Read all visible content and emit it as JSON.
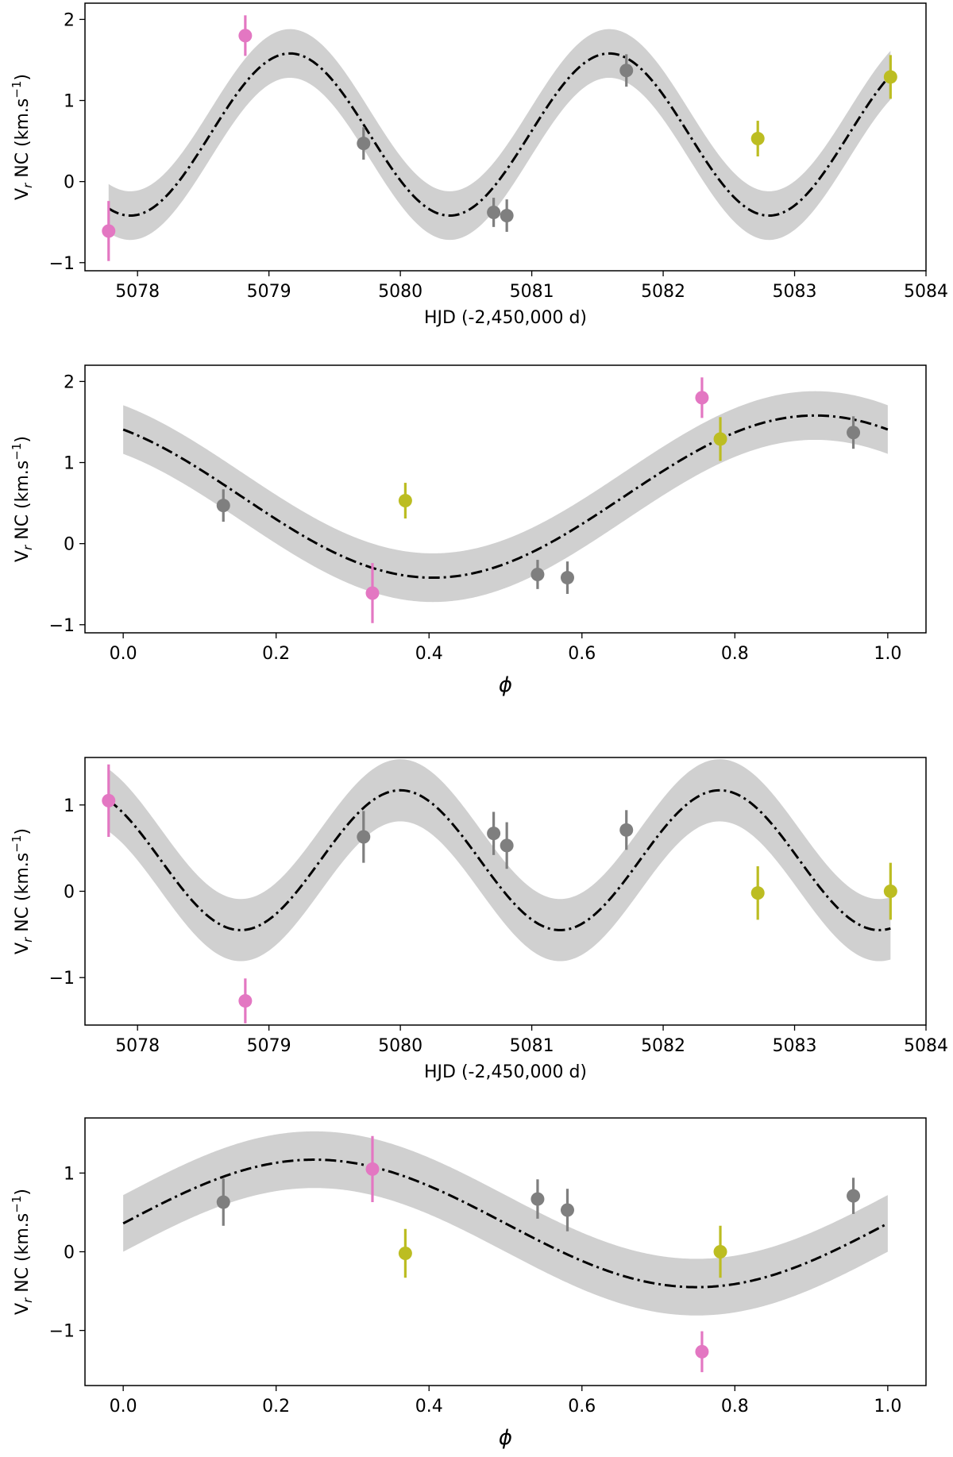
{
  "figure": {
    "colors": {
      "pink": "#e377c2",
      "gray": "#7f7f7f",
      "olive": "#bcbd22",
      "band": "#d0d0d0",
      "model": "#000000"
    }
  },
  "chart_data": [
    {
      "type": "scatter",
      "panel": "top",
      "xlabel": "HJD (-2,450,000 d)",
      "ylabel": "V_r NC (km.s^-1)",
      "ylabel_parts": {
        "main": "V",
        "sub": "r",
        "mid": " NC (km.s",
        "sup": "−1",
        "end": ")"
      },
      "xlim": [
        5077.6,
        5084.0
      ],
      "ylim": [
        -1.1,
        2.2
      ],
      "xticks": [
        5078,
        5079,
        5080,
        5081,
        5082,
        5083,
        5084
      ],
      "xtick_labels": [
        "5078",
        "5079",
        "5080",
        "5081",
        "5082",
        "5083",
        "5084"
      ],
      "yticks": [
        -1,
        0,
        1,
        2
      ],
      "ytick_labels": [
        "−1",
        "0",
        "1",
        "2"
      ],
      "model": {
        "style": "dash-dot",
        "x_range": [
          5077.78,
          5083.73
        ],
        "mean": 0.58,
        "amplitude": 1.0,
        "period": 2.43,
        "t_peak": 5079.16,
        "band_halfwidth": 0.3
      },
      "series": [
        {
          "name": "pink",
          "color": "#e377c2",
          "points": [
            {
              "x": 5077.78,
              "y": -0.61,
              "err": 0.37
            },
            {
              "x": 5078.82,
              "y": 1.8,
              "err": 0.25
            }
          ]
        },
        {
          "name": "gray",
          "color": "#7f7f7f",
          "points": [
            {
              "x": 5079.72,
              "y": 0.47,
              "err": 0.2
            },
            {
              "x": 5080.71,
              "y": -0.38,
              "err": 0.18
            },
            {
              "x": 5080.81,
              "y": -0.42,
              "err": 0.2
            },
            {
              "x": 5081.72,
              "y": 1.37,
              "err": 0.2
            }
          ]
        },
        {
          "name": "olive",
          "color": "#bcbd22",
          "points": [
            {
              "x": 5082.72,
              "y": 0.53,
              "err": 0.22
            },
            {
              "x": 5083.73,
              "y": 1.29,
              "err": 0.27
            }
          ]
        }
      ]
    },
    {
      "type": "scatter",
      "panel": "second",
      "xlabel": "ϕ",
      "ylabel": "V_r NC (km.s^-1)",
      "ylabel_parts": {
        "main": "V",
        "sub": "r",
        "mid": " NC (km.s",
        "sup": "−1",
        "end": ")"
      },
      "xlim": [
        -0.05,
        1.05
      ],
      "ylim": [
        -1.1,
        2.2
      ],
      "xticks": [
        0.0,
        0.2,
        0.4,
        0.6,
        0.8,
        1.0
      ],
      "xtick_labels": [
        "0.0",
        "0.2",
        "0.4",
        "0.6",
        "0.8",
        "1.0"
      ],
      "yticks": [
        -1,
        0,
        1,
        2
      ],
      "ytick_labels": [
        "−1",
        "0",
        "1",
        "2"
      ],
      "model": {
        "style": "dash-dot",
        "x_range": [
          0.0,
          1.0
        ],
        "mean": 0.58,
        "amplitude": 1.0,
        "period": 1.0,
        "t_peak": 0.905,
        "band_halfwidth": 0.3
      },
      "series": [
        {
          "name": "pink",
          "color": "#e377c2",
          "points": [
            {
              "x": 0.326,
              "y": -0.61,
              "err": 0.37
            },
            {
              "x": 0.757,
              "y": 1.8,
              "err": 0.25
            }
          ]
        },
        {
          "name": "gray",
          "color": "#7f7f7f",
          "points": [
            {
              "x": 0.131,
              "y": 0.47,
              "err": 0.2
            },
            {
              "x": 0.542,
              "y": -0.38,
              "err": 0.18
            },
            {
              "x": 0.581,
              "y": -0.42,
              "err": 0.2
            },
            {
              "x": 0.955,
              "y": 1.37,
              "err": 0.2
            }
          ]
        },
        {
          "name": "olive",
          "color": "#bcbd22",
          "points": [
            {
              "x": 0.369,
              "y": 0.53,
              "err": 0.22
            },
            {
              "x": 0.781,
              "y": 1.29,
              "err": 0.27
            }
          ]
        }
      ]
    },
    {
      "type": "scatter",
      "panel": "third",
      "xlabel": "HJD (-2,450,000 d)",
      "ylabel": "V_r NC (km.s^-1)",
      "ylabel_parts": {
        "main": "V",
        "sub": "r",
        "mid": " NC (km.s",
        "sup": "−1",
        "end": ")"
      },
      "xlim": [
        5077.6,
        5084.0
      ],
      "ylim": [
        -1.55,
        1.55
      ],
      "xticks": [
        5078,
        5079,
        5080,
        5081,
        5082,
        5083,
        5084
      ],
      "xtick_labels": [
        "5078",
        "5079",
        "5080",
        "5081",
        "5082",
        "5083",
        "5084"
      ],
      "yticks": [
        -1,
        0,
        1
      ],
      "ytick_labels": [
        "−1",
        "0",
        "1"
      ],
      "model": {
        "style": "dash-dot",
        "x_range": [
          5077.78,
          5083.73
        ],
        "mean": 0.36,
        "amplitude": 0.81,
        "period": 2.43,
        "t_peak": 5080.0,
        "band_halfwidth": 0.36
      },
      "series": [
        {
          "name": "pink",
          "color": "#e377c2",
          "points": [
            {
              "x": 5077.78,
              "y": 1.05,
              "err": 0.42
            },
            {
              "x": 5078.82,
              "y": -1.27,
              "err": 0.26
            }
          ]
        },
        {
          "name": "gray",
          "color": "#7f7f7f",
          "points": [
            {
              "x": 5079.72,
              "y": 0.63,
              "err": 0.3
            },
            {
              "x": 5080.71,
              "y": 0.67,
              "err": 0.25
            },
            {
              "x": 5080.81,
              "y": 0.53,
              "err": 0.27
            },
            {
              "x": 5081.72,
              "y": 0.71,
              "err": 0.23
            }
          ]
        },
        {
          "name": "olive",
          "color": "#bcbd22",
          "points": [
            {
              "x": 5082.72,
              "y": -0.02,
              "err": 0.31
            },
            {
              "x": 5083.73,
              "y": 0.0,
              "err": 0.33
            }
          ]
        }
      ]
    },
    {
      "type": "scatter",
      "panel": "bottom",
      "xlabel": "ϕ",
      "ylabel": "V_r NC (km.s^-1)",
      "ylabel_parts": {
        "main": "V",
        "sub": "r",
        "mid": " NC (km.s",
        "sup": "−1",
        "end": ")"
      },
      "xlim": [
        -0.05,
        1.05
      ],
      "ylim": [
        -1.7,
        1.7
      ],
      "xticks": [
        0.0,
        0.2,
        0.4,
        0.6,
        0.8,
        1.0
      ],
      "xtick_labels": [
        "0.0",
        "0.2",
        "0.4",
        "0.6",
        "0.8",
        "1.0"
      ],
      "yticks": [
        -1,
        0,
        1
      ],
      "ytick_labels": [
        "−1",
        "0",
        "1"
      ],
      "model": {
        "style": "dash-dot",
        "x_range": [
          0.0,
          1.0
        ],
        "mean": 0.36,
        "amplitude": 0.81,
        "period": 1.0,
        "t_peak": 0.25,
        "band_halfwidth": 0.36
      },
      "series": [
        {
          "name": "pink",
          "color": "#e377c2",
          "points": [
            {
              "x": 0.326,
              "y": 1.05,
              "err": 0.42
            },
            {
              "x": 0.757,
              "y": -1.27,
              "err": 0.26
            }
          ]
        },
        {
          "name": "gray",
          "color": "#7f7f7f",
          "points": [
            {
              "x": 0.131,
              "y": 0.63,
              "err": 0.3
            },
            {
              "x": 0.542,
              "y": 0.67,
              "err": 0.25
            },
            {
              "x": 0.581,
              "y": 0.53,
              "err": 0.27
            },
            {
              "x": 0.955,
              "y": 0.71,
              "err": 0.23
            }
          ]
        },
        {
          "name": "olive",
          "color": "#bcbd22",
          "points": [
            {
              "x": 0.369,
              "y": -0.02,
              "err": 0.31
            },
            {
              "x": 0.781,
              "y": 0.0,
              "err": 0.33
            }
          ]
        }
      ]
    }
  ]
}
